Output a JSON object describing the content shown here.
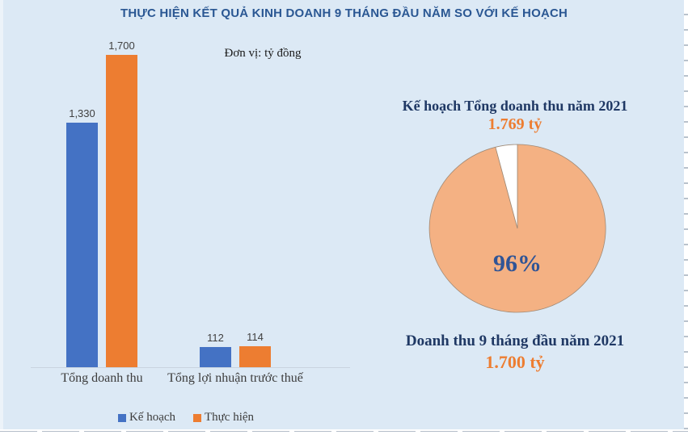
{
  "page": {
    "title": "THỰC HIỆN KẾT QUẢ KINH DOANH 9 THÁNG ĐẦU NĂM SO VỚI KẾ HOẠCH",
    "unit_note": "Đơn vị: tỷ đồng"
  },
  "colors": {
    "background": "#dce9f5",
    "title": "#2a5793",
    "navy_heading": "#1f3864",
    "value_orange": "#ed7d31",
    "percent_label": "#2f5496",
    "plan_blue": "#4472C4",
    "actual_orange": "#ED7D31",
    "pie_fill": "#F4B183",
    "pie_remainder": "#FFFFFF"
  },
  "legend": [
    {
      "label": "Kế hoạch",
      "color": "#4472C4"
    },
    {
      "label": "Thực hiện",
      "color": "#ED7D31"
    }
  ],
  "chart_data": [
    {
      "type": "bar",
      "title": "",
      "unit": "tỷ đồng",
      "categories": [
        "Tổng doanh thu",
        "Tổng lợi nhuận trước thuế"
      ],
      "series": [
        {
          "name": "Kế hoạch",
          "color": "#4472C4",
          "values": [
            1330,
            112
          ],
          "labels": [
            "1,330",
            "112"
          ]
        },
        {
          "name": "Thực hiện",
          "color": "#ED7D31",
          "values": [
            1700,
            114
          ],
          "labels": [
            "1,700",
            "114"
          ]
        }
      ],
      "ylim": [
        0,
        1700
      ],
      "grid": false,
      "legend_position": "bottom"
    },
    {
      "type": "pie",
      "title": "Kế hoạch Tổng doanh thu năm 2021",
      "title_value": "1.769 tỷ",
      "slices": [
        {
          "name": "Thực hiện",
          "value": 96,
          "color": "#F4B183",
          "label": "96%"
        },
        {
          "name": "Còn lại",
          "value": 4,
          "color": "#FFFFFF",
          "label": ""
        }
      ],
      "caption": "Doanh thu 9 tháng đầu năm 2021",
      "caption_value": "1.700 tỷ",
      "legend_position": "none"
    }
  ]
}
